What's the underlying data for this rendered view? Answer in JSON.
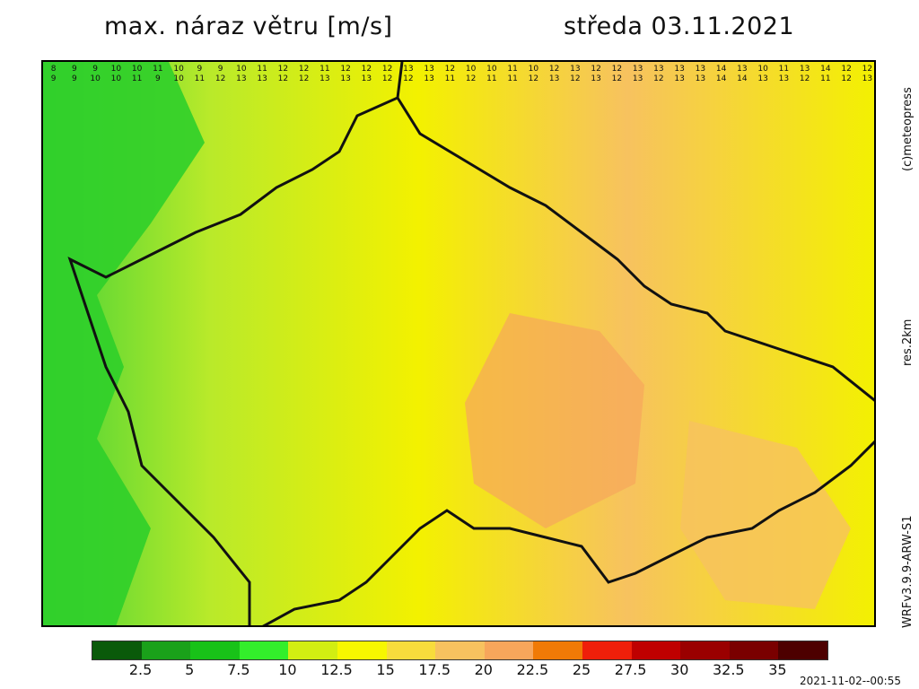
{
  "header": {
    "title_left": "max. náraz větru [m/s]",
    "title_right": "středa 03.11.2021"
  },
  "side_labels": {
    "top": "(c)meteopress",
    "middle": "res.2km",
    "bottom": "WRFv3.9.9-ARW-S1"
  },
  "legend": {
    "colors": [
      "#0a5a0a",
      "#1aa11a",
      "#18c218",
      "#33ee2b",
      "#d2ee12",
      "#f7f700",
      "#f8dc3c",
      "#f7c25f",
      "#f7a65b",
      "#f07a06",
      "#ef1f0a",
      "#bf0000",
      "#9a0000",
      "#7a0000",
      "#4d0000"
    ],
    "tick_labels": [
      "2.5",
      "5",
      "7.5",
      "10",
      "12.5",
      "15",
      "17.5",
      "20",
      "22.5",
      "25",
      "27.5",
      "30",
      "32.5",
      "35"
    ]
  },
  "timestamp": "2021-11-02--00:55",
  "map": {
    "grid_values_row_0": [
      "8",
      "9",
      "9",
      "10",
      "10",
      "11",
      "10",
      "9",
      "9",
      "10",
      "11",
      "12",
      "12",
      "11",
      "12",
      "12",
      "12",
      "13",
      "13",
      "12",
      "10",
      "10",
      "11",
      "10",
      "12",
      "13",
      "12",
      "12",
      "13",
      "13",
      "13",
      "13",
      "14",
      "13",
      "10",
      "11",
      "13",
      "14",
      "12",
      "12"
    ],
    "grid_values_row_1": [
      "9",
      "9",
      "10",
      "10",
      "11",
      "9",
      "10",
      "11",
      "12",
      "13",
      "13",
      "12",
      "12",
      "13",
      "13",
      "13",
      "12",
      "12",
      "13",
      "11",
      "12",
      "11",
      "11",
      "12",
      "13",
      "12",
      "13",
      "12",
      "13",
      "12",
      "13",
      "13",
      "14",
      "14",
      "13",
      "13",
      "12",
      "11",
      "12",
      "13"
    ]
  }
}
